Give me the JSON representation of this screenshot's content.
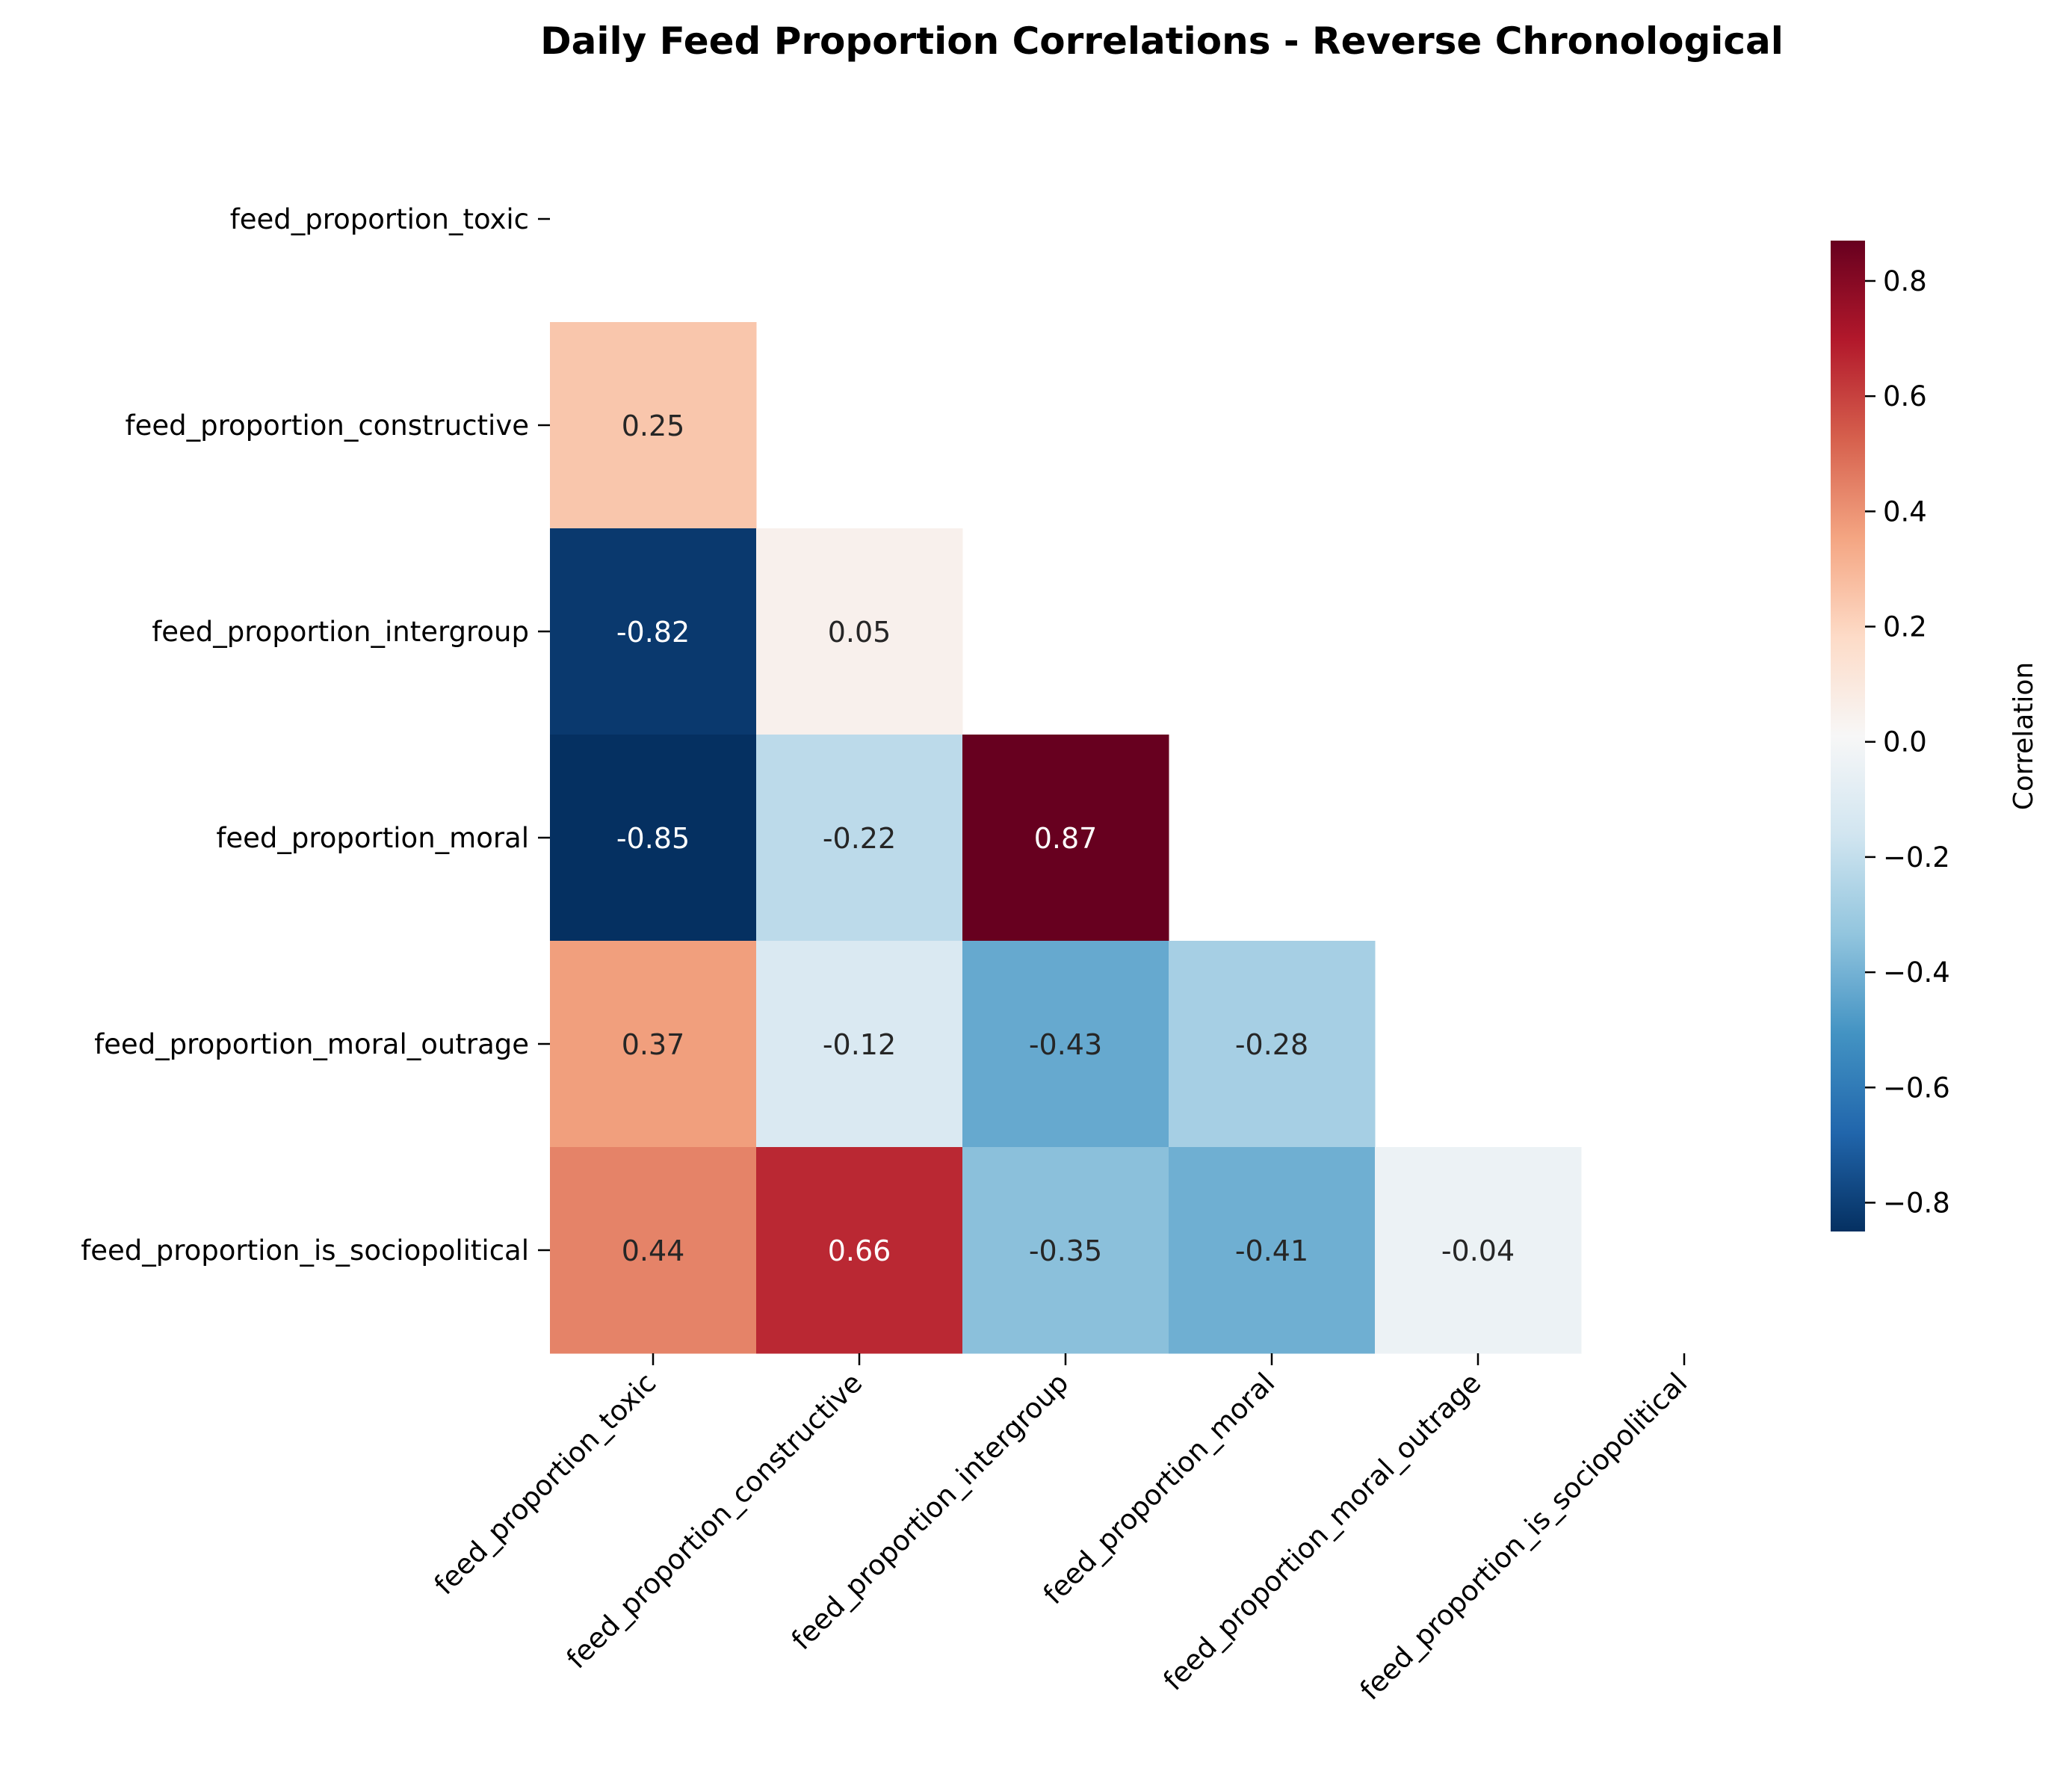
{
  "chart_data": {
    "type": "heatmap",
    "title": "Daily Feed Proportion Correlations - Reverse Chronological",
    "xlabel": "",
    "ylabel": "",
    "variables": [
      "feed_proportion_toxic",
      "feed_proportion_constructive",
      "feed_proportion_intergroup",
      "feed_proportion_moral",
      "feed_proportion_moral_outrage",
      "feed_proportion_is_sociopolitical"
    ],
    "mask": "upper-triangle-including-diagonal",
    "values": [
      [
        null,
        null,
        null,
        null,
        null,
        null
      ],
      [
        0.25,
        null,
        null,
        null,
        null,
        null
      ],
      [
        -0.82,
        0.05,
        null,
        null,
        null,
        null
      ],
      [
        -0.85,
        -0.22,
        0.87,
        null,
        null,
        null
      ],
      [
        0.37,
        -0.12,
        -0.43,
        -0.28,
        null,
        null
      ],
      [
        0.44,
        0.66,
        -0.35,
        -0.41,
        -0.04,
        null
      ]
    ],
    "colormap": "RdBu_r",
    "colorbar": {
      "label": "Correlation",
      "range": [
        -0.85,
        0.87
      ],
      "ticks": [
        -0.8,
        -0.6,
        -0.4,
        -0.2,
        0.0,
        0.2,
        0.4,
        0.6,
        0.8
      ],
      "tick_labels": [
        "−0.8",
        "−0.6",
        "−0.4",
        "−0.2",
        "0.0",
        "0.2",
        "0.4",
        "0.6",
        "0.8"
      ]
    },
    "cell_labels": [
      [
        "",
        "",
        "",
        "",
        "",
        ""
      ],
      [
        "0.25",
        "",
        "",
        "",
        "",
        ""
      ],
      [
        "-0.82",
        "0.05",
        "",
        "",
        "",
        ""
      ],
      [
        "-0.85",
        "-0.22",
        "0.87",
        "",
        "",
        ""
      ],
      [
        "0.37",
        "-0.12",
        "-0.43",
        "-0.28",
        "",
        ""
      ],
      [
        "0.44",
        "0.66",
        "-0.35",
        "-0.41",
        "-0.04",
        ""
      ]
    ]
  }
}
